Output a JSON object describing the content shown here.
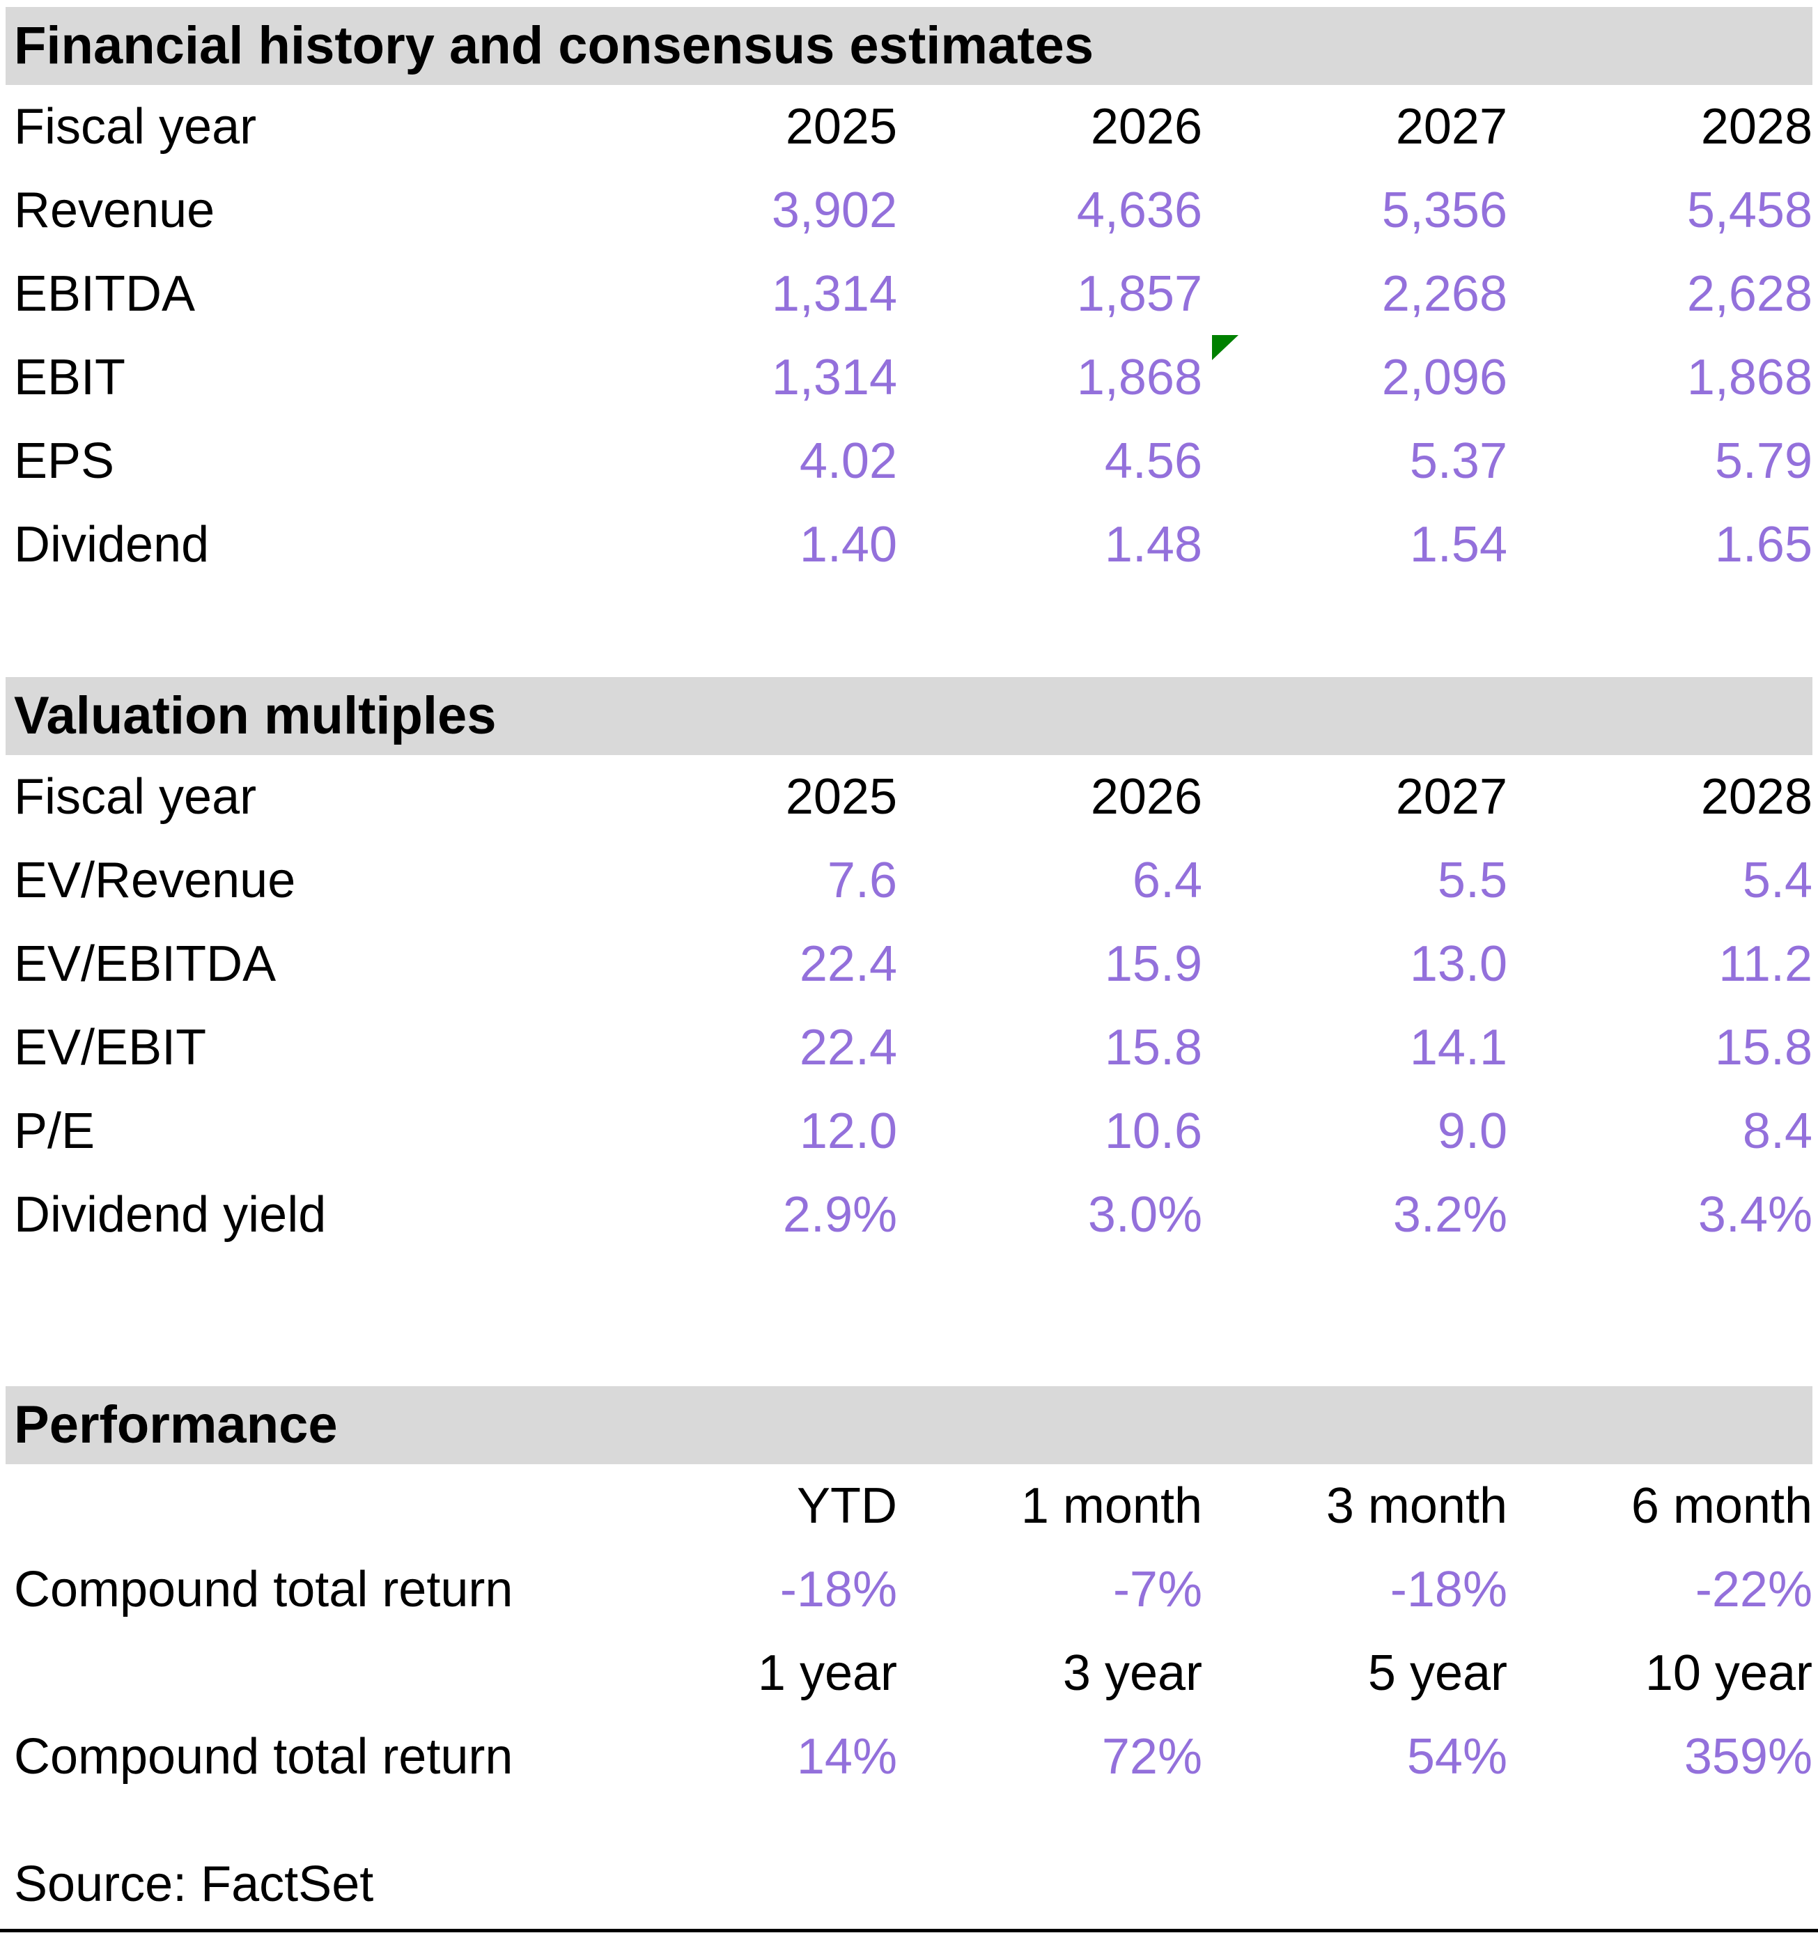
{
  "colors": {
    "value_text": "#9370DB",
    "section_header_bg": "#D9D9D9",
    "flag_green": "#008000",
    "text_black": "#000000",
    "page_bg": "#FFFFFF"
  },
  "sections": [
    {
      "title": "Financial history and consensus estimates",
      "fiscal_label": "Fiscal year",
      "years": [
        "2025",
        "2026",
        "2027",
        "2028"
      ],
      "rows": [
        {
          "label": "Revenue",
          "values": [
            "3,902",
            "4,636",
            "5,356",
            "5,458"
          ]
        },
        {
          "label": "EBITDA",
          "values": [
            "1,314",
            "1,857",
            "2,268",
            "2,628"
          ]
        },
        {
          "label": "EBIT",
          "values": [
            "1,314",
            "1,868",
            "2,096",
            "1,868"
          ],
          "flag": {
            "icon": "green-corner-flag",
            "year": "2026"
          }
        },
        {
          "label": "EPS",
          "values": [
            "4.02",
            "4.56",
            "5.37",
            "5.79"
          ]
        },
        {
          "label": "Dividend",
          "values": [
            "1.40",
            "1.48",
            "1.54",
            "1.65"
          ]
        }
      ]
    },
    {
      "title": "Valuation multiples",
      "fiscal_label": "Fiscal year",
      "years": [
        "2025",
        "2026",
        "2027",
        "2028"
      ],
      "rows": [
        {
          "label": "EV/Revenue",
          "values": [
            "7.6",
            "6.4",
            "5.5",
            "5.4"
          ]
        },
        {
          "label": "EV/EBITDA",
          "values": [
            "22.4",
            "15.9",
            "13.0",
            "11.2"
          ]
        },
        {
          "label": "EV/EBIT",
          "values": [
            "22.4",
            "15.8",
            "14.1",
            "15.8"
          ]
        },
        {
          "label": "P/E",
          "values": [
            "12.0",
            "10.6",
            "9.0",
            "8.4"
          ]
        },
        {
          "label": "Dividend yield",
          "values": [
            "2.9%",
            "3.0%",
            "3.2%",
            "3.4%"
          ]
        }
      ]
    },
    {
      "title": "Performance",
      "period_groups": [
        {
          "headers": [
            "YTD",
            "1 month",
            "3 month",
            "6 month"
          ],
          "row_label": "Compound total return",
          "values": [
            "-18%",
            "-7%",
            "-18%",
            "-22%"
          ]
        },
        {
          "headers": [
            "1 year",
            "3 year",
            "5 year",
            "10 year"
          ],
          "row_label": "Compound total return",
          "values": [
            "14%",
            "72%",
            "54%",
            "359%"
          ]
        }
      ]
    }
  ],
  "footer": {
    "source": "Source: FactSet"
  }
}
